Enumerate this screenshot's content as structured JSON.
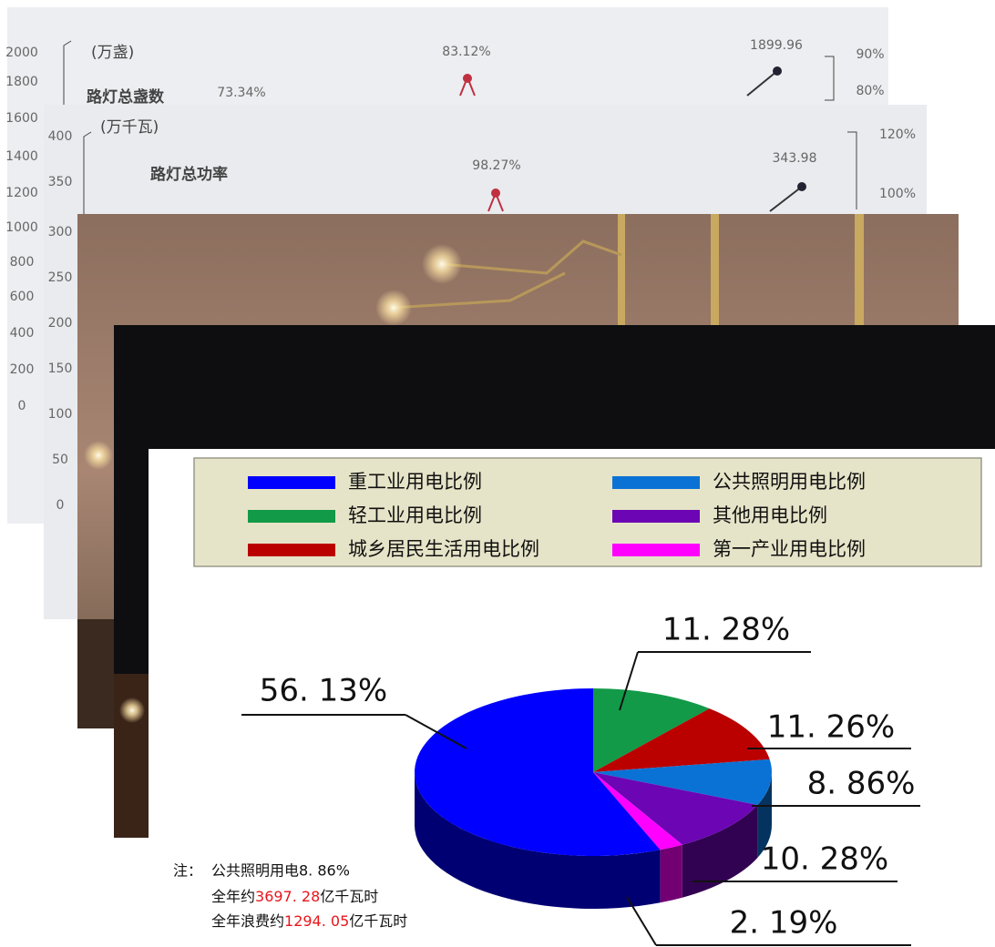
{
  "background": {
    "chart_photo_1": {
      "unit": "(万盏)",
      "title": "路灯总盏数",
      "axis": [
        "2000",
        "1800",
        "1600",
        "1400",
        "1200",
        "1000",
        "800",
        "600",
        "400",
        "200",
        "0"
      ],
      "labels": [
        "73.34%",
        "83.12%",
        "1899.96",
        "90%",
        "80%"
      ]
    },
    "chart_photo_2": {
      "unit": "(万千瓦)",
      "title": "路灯总功率",
      "axis": [
        "400",
        "350",
        "300",
        "250",
        "200",
        "150",
        "100",
        "50",
        "0"
      ],
      "labels": [
        "98.27%",
        "343.98",
        "120%",
        "100%"
      ]
    }
  },
  "chart_data": {
    "type": "pie",
    "categories": [
      "重工业用电比例",
      "轻工业用电比例",
      "城乡居民生活用电比例",
      "公共照明用电比例",
      "其他用电比例",
      "第一产业用电比例"
    ],
    "values": [
      56.13,
      11.28,
      11.26,
      8.86,
      10.28,
      2.19
    ],
    "value_labels": [
      "56. 13%",
      "11. 28%",
      "11. 26%",
      "8. 86%",
      "10. 28%",
      "2. 19%"
    ],
    "colors": [
      "#0000ff",
      "#129a48",
      "#bb0000",
      "#0a72d4",
      "#6c05b4",
      "#ff00ff"
    ],
    "legend": "top"
  },
  "note": {
    "prefix": "注：",
    "line1": "公共照明用电8. 86%",
    "line2": [
      "全年约",
      "3697. 28",
      "亿千瓦时"
    ],
    "line3": [
      "全年浪费约",
      "1294. 05",
      "亿千瓦时"
    ]
  }
}
